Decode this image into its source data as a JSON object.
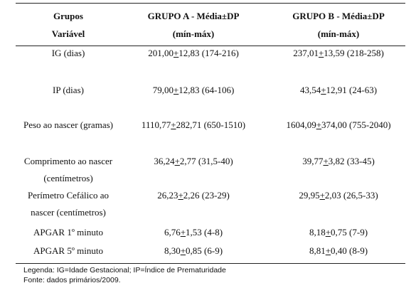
{
  "header": {
    "col1": [
      "Grupos",
      "Variável"
    ],
    "col2": [
      "GRUPO A - Média±DP",
      "(mín-máx)"
    ],
    "col3": [
      "GRUPO B - Média±DP",
      "(mín-máx)"
    ]
  },
  "rows": [
    {
      "label": [
        "IG (dias)"
      ],
      "a": {
        "mean": "201,00",
        "sd": "12,83",
        "range": "(174-216)"
      },
      "b": {
        "mean": "237,01",
        "sd": "13,59",
        "range": "(218-258)"
      }
    },
    {
      "label": [
        "IP (dias)"
      ],
      "a": {
        "mean": "79,00",
        "sd": "12,83",
        "range": "(64-106)"
      },
      "b": {
        "mean": "43,54",
        "sd": "12,91",
        "range": "(24-63)"
      }
    },
    {
      "label": [
        "Peso ao nascer (gramas)"
      ],
      "a": {
        "mean": "1110,77",
        "sd": "282,71",
        "range": "(650-1510)"
      },
      "b": {
        "mean": "1604,09",
        "sd": "374,00",
        "range": "(755-2040)"
      }
    },
    {
      "label": [
        "Comprimento ao nascer",
        "(centímetros)"
      ],
      "a": {
        "mean": "36,24",
        "sd": "2,77",
        "range": "(31,5-40)"
      },
      "b": {
        "mean": "39,77",
        "sd": "3,82",
        "range": "(33-45)"
      }
    },
    {
      "label": [
        "Perímetro Cefálico ao",
        "nascer (centímetros)"
      ],
      "a": {
        "mean": "26,23",
        "sd": "2,26",
        "range": "(23-29)"
      },
      "b": {
        "mean": "29,95",
        "sd": "2,03",
        "range": "(26,5-33)"
      }
    },
    {
      "label": [
        "APGAR 1º minuto"
      ],
      "a": {
        "mean": "6,76",
        "sd": "1,53",
        "range": "(4-8)"
      },
      "b": {
        "mean": "8,18",
        "sd": "0,75",
        "range": "(7-9)"
      }
    },
    {
      "label": [
        "APGAR 5º minuto"
      ],
      "a": {
        "mean": "8,30",
        "sd": "0,85",
        "range": "(6-9)"
      },
      "b": {
        "mean": "8,81",
        "sd": "0,40",
        "range": "(8-9)"
      }
    }
  ],
  "plus_sign": "+",
  "footer": [
    "Legenda: IG=Idade Gestacional; IP=Índice de Prematuridade",
    "Fonte: dados primários/2009."
  ]
}
